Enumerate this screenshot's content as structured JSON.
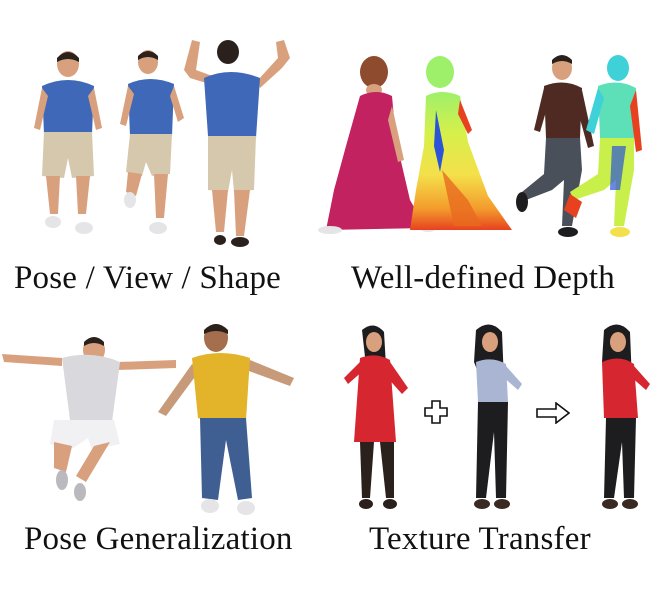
{
  "captions": {
    "pose_view_shape": "Pose / View / Shape",
    "well_defined_depth": "Well-defined Depth",
    "pose_generalization": "Pose Generalization",
    "texture_transfer": "Texture Transfer"
  },
  "colors": {
    "blue_shirt": "#3f69b8",
    "khaki_shorts": "#d6c8ad",
    "skin": "#d9a07e",
    "hair_dark": "#2b211c",
    "magenta_dress": "#c2225f",
    "depth_red": "#e8411f",
    "depth_yellow": "#f4e04a",
    "depth_cyan": "#3ed2d8",
    "depth_blue": "#2b55d6",
    "brown_jacket": "#4e2a22",
    "grey_jeans": "#4a5059",
    "white_tee": "#d9d9dd",
    "yellow_tee": "#e3b429",
    "blue_jeans": "#3f5f93",
    "red_coat": "#d6262f",
    "light_blue_shirt": "#a9b5d3",
    "black_pants": "#1d1d1f"
  },
  "icons": {
    "plus": "plus-icon",
    "arrow": "right-arrow-icon"
  }
}
